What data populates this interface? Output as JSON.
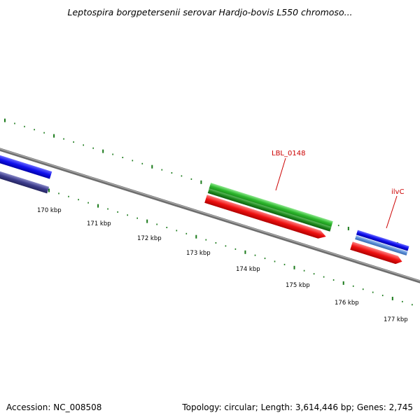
{
  "title": "Leptospira borgpetersenii serovar Hardjo-bovis L550 chromoso...",
  "footer": {
    "accession": "Accession: NC_008508",
    "summary": "Topology: circular; Length: 3,614,446 bp; Genes: 2,745"
  },
  "colors": {
    "backbone": "#808080",
    "tick": "#1a7a1a",
    "forward_cds": "#1010ee",
    "forward_cds_alt": "#5a8ed8",
    "reverse_cds": "#3c3c8c",
    "rna_gene": "#2db82d",
    "rna_gene_dark": "#1e8a1e",
    "feature_red": "#ee1010",
    "label": "#cc0000"
  },
  "scale_labels": [
    "170 kbp",
    "171 kbp",
    "172 kbp",
    "173 kbp",
    "174 kbp",
    "175 kbp",
    "176 kbp",
    "177 kbp"
  ],
  "features": [
    {
      "name": "blue-gene-left",
      "track": "forward",
      "color": "forward_cds"
    },
    {
      "name": "navy-gene-left",
      "track": "reverse",
      "color": "reverse_cds"
    },
    {
      "name": "green-gene",
      "track": "forward",
      "color": "rna_gene"
    },
    {
      "name": "dark-green-gene",
      "track": "forward",
      "color": "rna_gene_dark"
    },
    {
      "name": "red-gene-middle",
      "track": "reverse",
      "color": "feature_red"
    },
    {
      "name": "blue-gene-right",
      "track": "forward",
      "color": "forward_cds"
    },
    {
      "name": "light-blue-gene-right",
      "track": "forward",
      "color": "forward_cds_alt"
    },
    {
      "name": "red-gene-right",
      "track": "reverse",
      "color": "feature_red"
    }
  ],
  "gene_labels": [
    {
      "text": "LBL_0148"
    },
    {
      "text": "ilvC"
    }
  ]
}
